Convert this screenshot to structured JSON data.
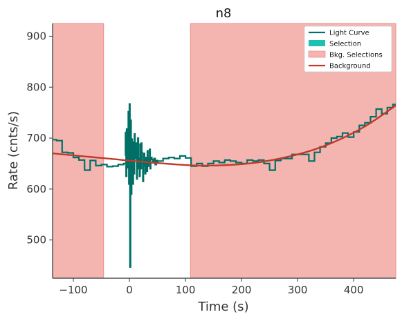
{
  "chart_data": {
    "type": "line",
    "title": "n8",
    "xlabel": "Time (s)",
    "ylabel": "Rate (cnts/s)",
    "xlim": [
      -137,
      475
    ],
    "ylim": [
      425,
      925
    ],
    "x_ticks": [
      -100,
      0,
      100,
      200,
      300,
      400
    ],
    "x_tick_labels": [
      "−100",
      "0",
      "100",
      "200",
      "300",
      "400"
    ],
    "y_ticks": [
      500,
      600,
      700,
      800,
      900
    ],
    "y_tick_labels": [
      "500",
      "600",
      "700",
      "800",
      "900"
    ],
    "grid": false,
    "legend_position": "top-right",
    "legend": [
      {
        "label": "Light Curve",
        "kind": "line",
        "color": "#007066"
      },
      {
        "label": "Selection",
        "kind": "patch",
        "color": "#1fbfb2"
      },
      {
        "label": "Bkg. Selections",
        "kind": "patch",
        "color": "#f4a9a3"
      },
      {
        "label": "Background",
        "kind": "line",
        "color": "#c0392b"
      }
    ],
    "colors": {
      "light_curve": "#007066",
      "selection": "#1fbfb2",
      "bkg_selection_fill": "#f4b5b0",
      "bkg_selection_edge": "#ee8f88",
      "background": "#c0392b"
    },
    "bkg_selections": [
      [
        -137,
        -46
      ],
      [
        109,
        475
      ]
    ],
    "selection": [
      0,
      0
    ],
    "background_poly": {
      "x": [
        -137,
        -40,
        40,
        130,
        220,
        300,
        360,
        420,
        475
      ],
      "y": [
        670,
        660,
        652,
        646,
        651,
        668,
        690,
        723,
        764
      ]
    },
    "light_curve_left": {
      "x": [
        -137,
        -130,
        -120,
        -110,
        -100,
        -90,
        -80,
        -70,
        -60,
        -50,
        -40,
        -30,
        -20,
        -10,
        -5
      ],
      "y": [
        697,
        695,
        672,
        671,
        662,
        657,
        637,
        656,
        646,
        648,
        644,
        645,
        648,
        650,
        667
      ]
    },
    "light_curve_burst": {
      "x": [
        -7,
        -6,
        -5,
        -4,
        -3,
        -2,
        -1,
        0,
        1,
        2,
        3,
        4,
        5,
        6,
        7,
        8,
        9,
        10,
        11,
        12,
        13,
        14,
        15,
        16,
        17,
        18,
        19,
        20,
        21,
        22,
        23,
        24,
        25,
        26,
        27,
        28,
        29,
        30,
        31,
        32,
        33,
        34,
        35,
        36,
        37,
        38,
        40,
        42,
        44,
        46,
        48,
        50
      ],
      "y": [
        712,
        625,
        718,
        642,
        700,
        752,
        610,
        767,
        447,
        735,
        590,
        698,
        655,
        610,
        692,
        630,
        708,
        682,
        660,
        690,
        620,
        675,
        700,
        640,
        660,
        625,
        688,
        640,
        690,
        672,
        650,
        615,
        645,
        670,
        660,
        630,
        640,
        662,
        635,
        675,
        645,
        660,
        650,
        678,
        640,
        662,
        658,
        652,
        660,
        648,
        656,
        650
      ]
    },
    "light_curve_right": {
      "x": [
        50,
        60,
        70,
        80,
        90,
        100,
        110,
        120,
        130,
        140,
        150,
        160,
        170,
        180,
        190,
        200,
        210,
        220,
        230,
        240,
        250,
        260,
        270,
        280,
        290,
        300,
        310,
        320,
        330,
        340,
        350,
        360,
        370,
        380,
        390,
        400,
        410,
        420,
        430,
        440,
        450,
        460,
        470,
        475
      ],
      "y": [
        655,
        660,
        662,
        660,
        665,
        661,
        645,
        650,
        645,
        650,
        655,
        652,
        657,
        655,
        652,
        650,
        657,
        655,
        657,
        650,
        637,
        656,
        660,
        660,
        668,
        668,
        668,
        655,
        672,
        683,
        690,
        700,
        703,
        710,
        702,
        712,
        725,
        730,
        742,
        757,
        748,
        760,
        766,
        766
      ]
    }
  }
}
